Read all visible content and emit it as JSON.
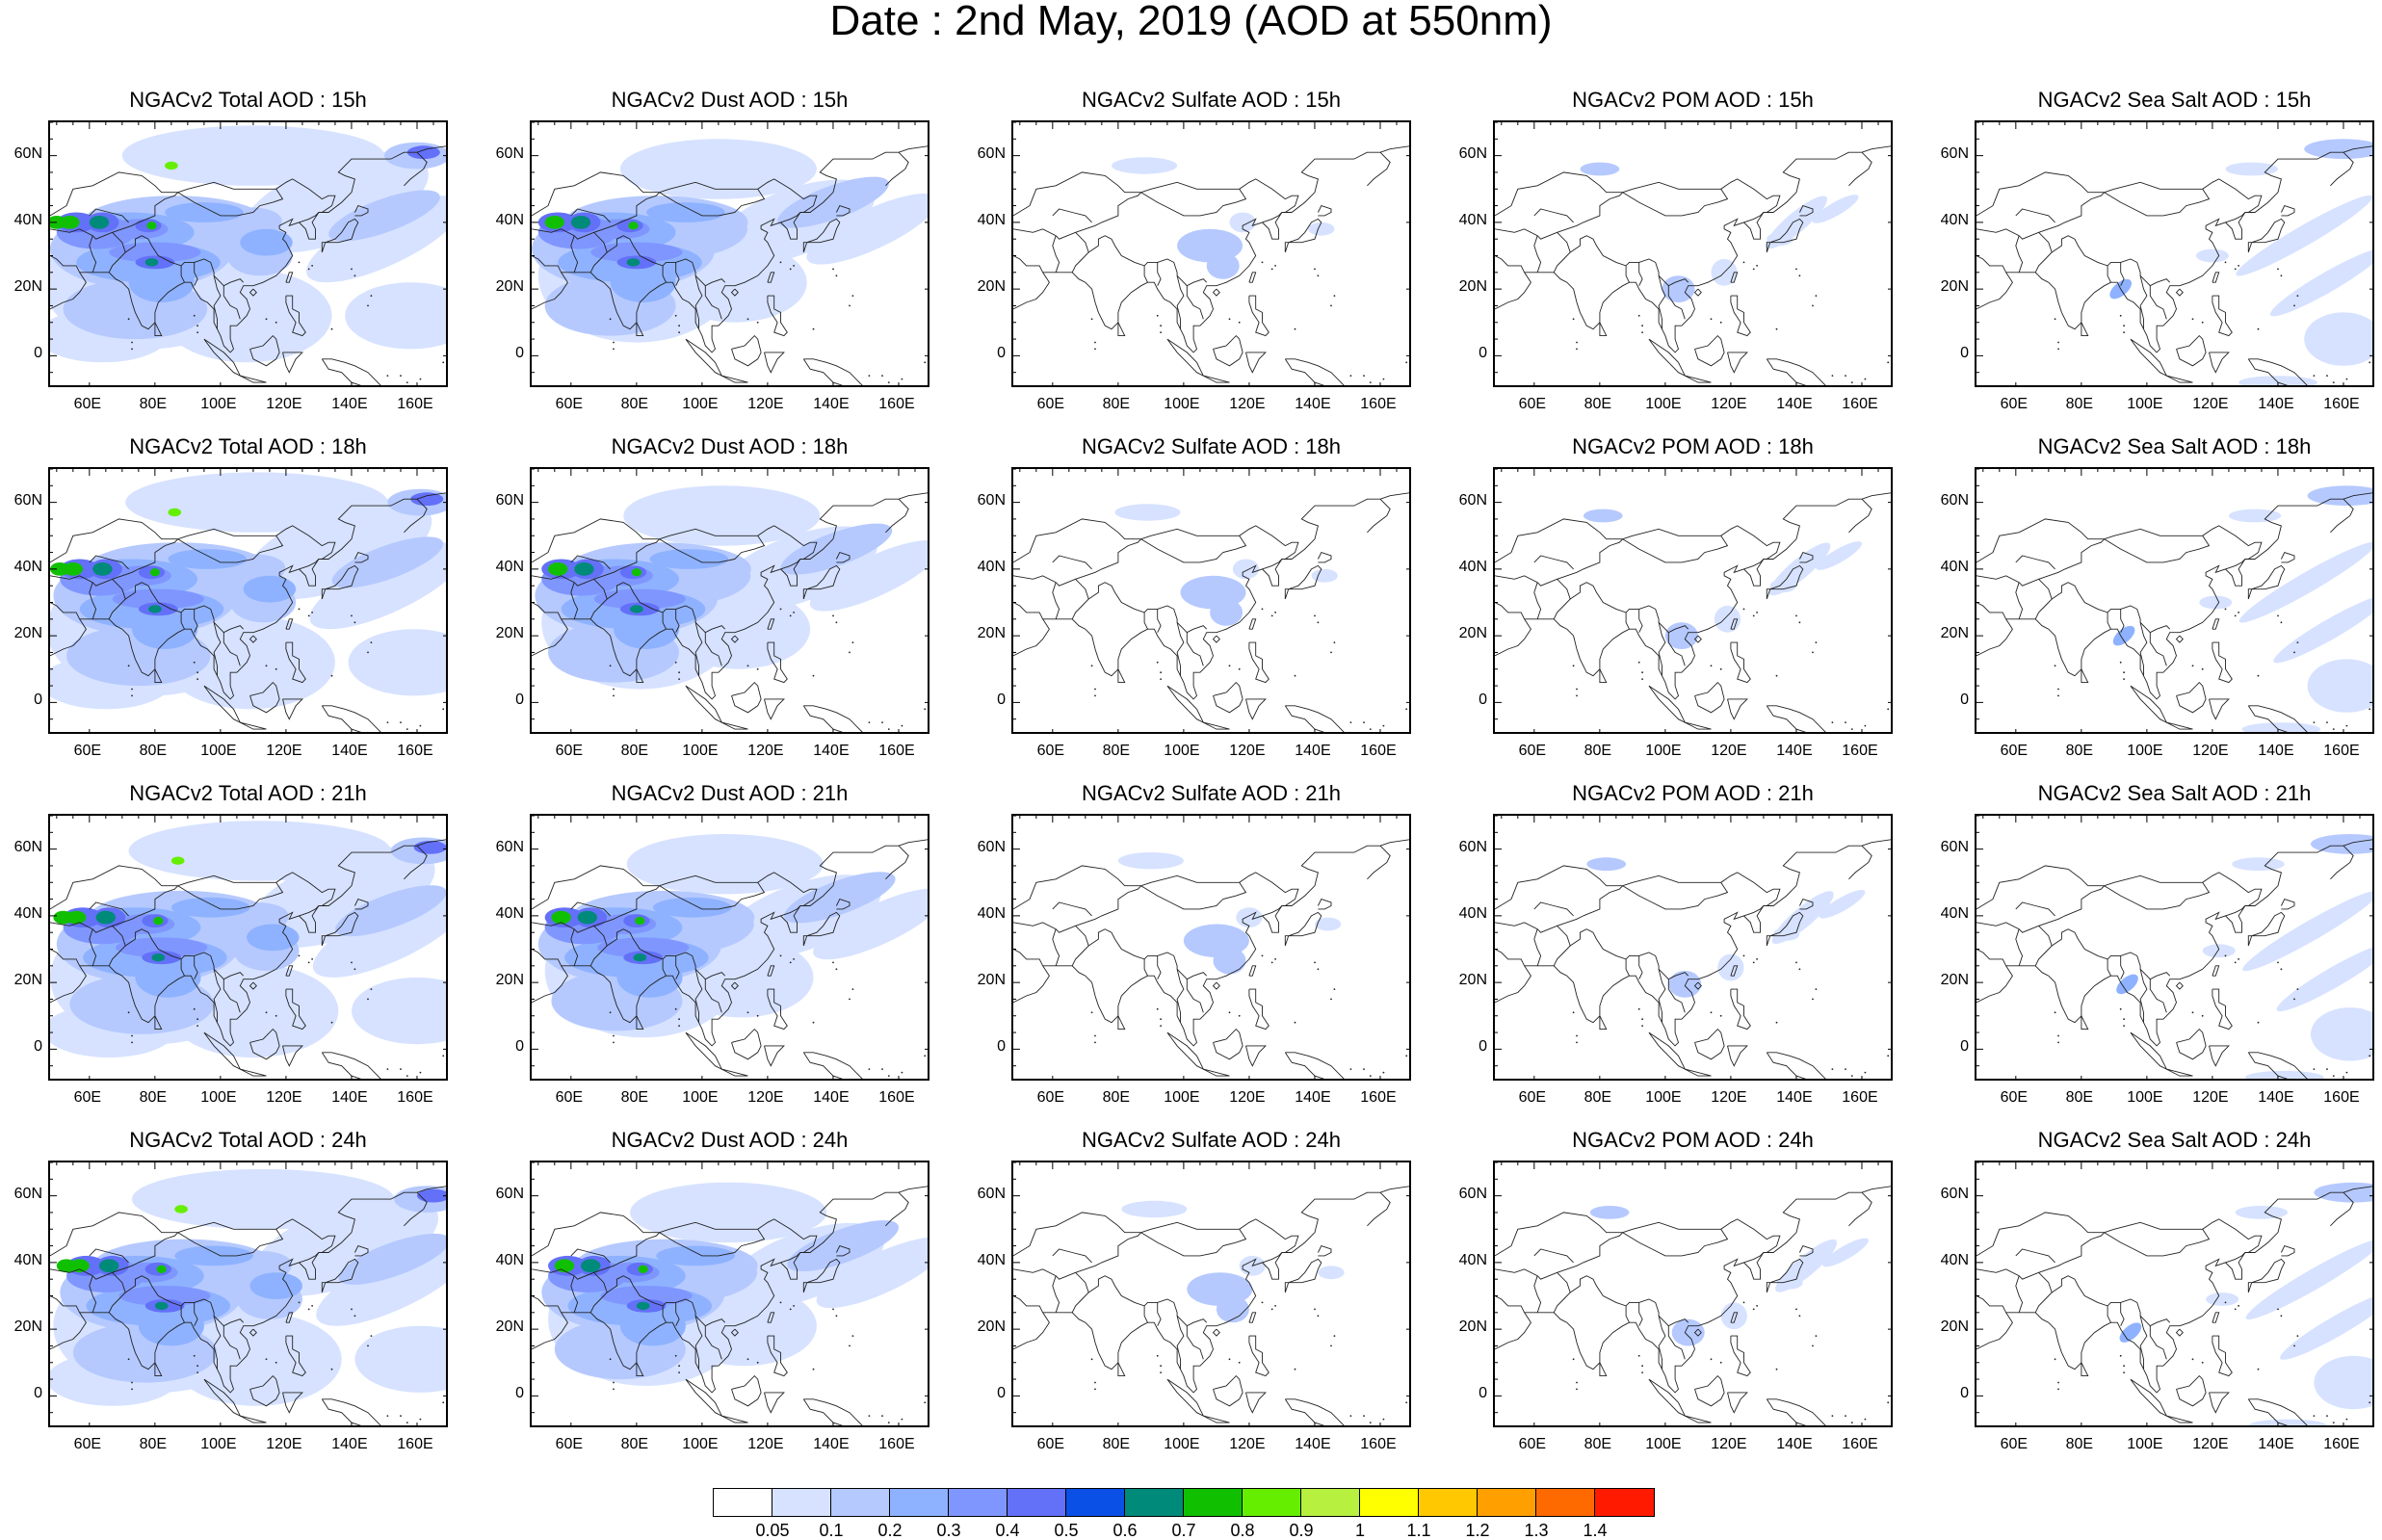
{
  "title": "Date : 2nd May, 2019 (AOD at 550nm)",
  "lat_ticks": [
    "60N",
    "40N",
    "20N",
    "0"
  ],
  "lon_ticks": [
    "60E",
    "80E",
    "100E",
    "120E",
    "140E",
    "160E"
  ],
  "panels": [
    {
      "title": "NGACv2 Total AOD : 15h",
      "species": "total",
      "hour": "15h"
    },
    {
      "title": "NGACv2 Dust AOD : 15h",
      "species": "dust",
      "hour": "15h"
    },
    {
      "title": "NGACv2 Sulfate AOD : 15h",
      "species": "sulfate",
      "hour": "15h"
    },
    {
      "title": "NGACv2 POM AOD : 15h",
      "species": "pom",
      "hour": "15h"
    },
    {
      "title": "NGACv2 Sea Salt AOD : 15h",
      "species": "seasalt",
      "hour": "15h"
    },
    {
      "title": "NGACv2 Total AOD : 18h",
      "species": "total",
      "hour": "18h"
    },
    {
      "title": "NGACv2 Dust AOD : 18h",
      "species": "dust",
      "hour": "18h"
    },
    {
      "title": "NGACv2 Sulfate AOD : 18h",
      "species": "sulfate",
      "hour": "18h"
    },
    {
      "title": "NGACv2 POM AOD : 18h",
      "species": "pom",
      "hour": "18h"
    },
    {
      "title": "NGACv2 Sea Salt AOD : 18h",
      "species": "seasalt",
      "hour": "18h"
    },
    {
      "title": "NGACv2 Total AOD : 21h",
      "species": "total",
      "hour": "21h"
    },
    {
      "title": "NGACv2 Dust AOD : 21h",
      "species": "dust",
      "hour": "21h"
    },
    {
      "title": "NGACv2 Sulfate AOD : 21h",
      "species": "sulfate",
      "hour": "21h"
    },
    {
      "title": "NGACv2 POM AOD : 21h",
      "species": "pom",
      "hour": "21h"
    },
    {
      "title": "NGACv2 Sea Salt AOD : 21h",
      "species": "seasalt",
      "hour": "21h"
    },
    {
      "title": "NGACv2 Total AOD : 24h",
      "species": "total",
      "hour": "24h"
    },
    {
      "title": "NGACv2 Dust AOD : 24h",
      "species": "dust",
      "hour": "24h"
    },
    {
      "title": "NGACv2 Sulfate AOD : 24h",
      "species": "sulfate",
      "hour": "24h"
    },
    {
      "title": "NGACv2 POM AOD : 24h",
      "species": "pom",
      "hour": "24h"
    },
    {
      "title": "NGACv2 Sea Salt  AOD : 24h",
      "species": "seasalt",
      "hour": "24h"
    }
  ],
  "colorbar": {
    "labels": [
      "0.05",
      "0.1",
      "0.2",
      "0.3",
      "0.4",
      "0.5",
      "0.6",
      "0.7",
      "0.8",
      "0.9",
      "1",
      "1.1",
      "1.2",
      "1.3",
      "1.4"
    ],
    "colors": [
      "#ffffff",
      "#d6e2ff",
      "#b5c9ff",
      "#8eb2ff",
      "#7f96ff",
      "#6370f8",
      "#0a50e6",
      "#008a7a",
      "#10c000",
      "#66ee00",
      "#b8f040",
      "#ffff00",
      "#ffc800",
      "#ffa000",
      "#ff6a00",
      "#ff1a00"
    ]
  }
}
